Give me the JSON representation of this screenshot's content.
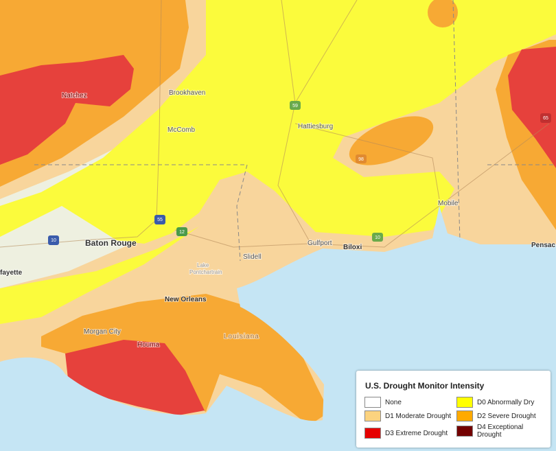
{
  "places": [
    "Natchez",
    "Brookhaven",
    "McComb",
    "Hattiesburg",
    "Baton Rouge",
    "fayette",
    "Slidell",
    "Gulfport",
    "Biloxi",
    "Mobile",
    "Pensac",
    "New Orleans",
    "Lake",
    "Pontchartrain",
    "Morgan City",
    "Houma",
    "Louisiana"
  ],
  "highways": [
    "10",
    "55",
    "12",
    "59",
    "98",
    "65",
    "10"
  ],
  "legend": {
    "title": "U.S. Drought Monitor Intensity",
    "items": [
      {
        "label": "None",
        "color": "#ffffff"
      },
      {
        "label": "D0 Abnormally Dry",
        "color": "#ffff00"
      },
      {
        "label": "D1 Moderate Drought",
        "color": "#fcd37f"
      },
      {
        "label": "D2 Severe Drought",
        "color": "#ffaa00"
      },
      {
        "label": "D3 Extreme Drought",
        "color": "#e60000"
      },
      {
        "label": "D4 Exceptional Drought",
        "color": "#730000"
      }
    ]
  }
}
